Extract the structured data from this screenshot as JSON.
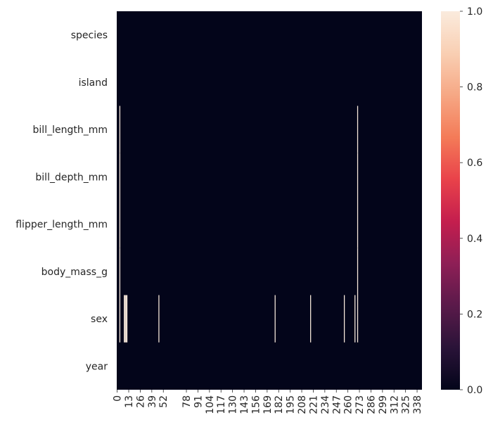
{
  "chart_data": {
    "type": "heatmap",
    "title": "",
    "xlabel": "",
    "ylabel": "",
    "rows": [
      "species",
      "island",
      "bill_length_mm",
      "bill_depth_mm",
      "flipper_length_mm",
      "body_mass_g",
      "sex",
      "year"
    ],
    "n_columns": 344,
    "x_ticks": [
      0,
      13,
      26,
      39,
      52,
      78,
      91,
      104,
      117,
      130,
      143,
      156,
      169,
      182,
      195,
      208,
      221,
      234,
      247,
      260,
      273,
      286,
      299,
      312,
      325,
      338
    ],
    "values_description": "cell value 1 = missing, 0 = present",
    "ones": {
      "bill_length_mm": [
        3,
        271
      ],
      "bill_depth_mm": [
        3,
        271
      ],
      "flipper_length_mm": [
        3,
        271
      ],
      "body_mass_g": [
        3,
        271
      ],
      "sex": [
        3,
        8,
        9,
        10,
        11,
        47,
        178,
        218,
        256,
        268,
        271
      ]
    },
    "colorbar": {
      "min": 0.0,
      "max": 1.0,
      "ticks": [
        "0.0",
        "0.2",
        "0.4",
        "0.6",
        "0.8",
        "1.0"
      ],
      "colors": [
        "#03051a",
        "#2a1338",
        "#5a1a4a",
        "#8e1f56",
        "#c41e4e",
        "#e9424a",
        "#f47b58",
        "#f6a784",
        "#f9cfb3",
        "#faebdd"
      ]
    }
  }
}
